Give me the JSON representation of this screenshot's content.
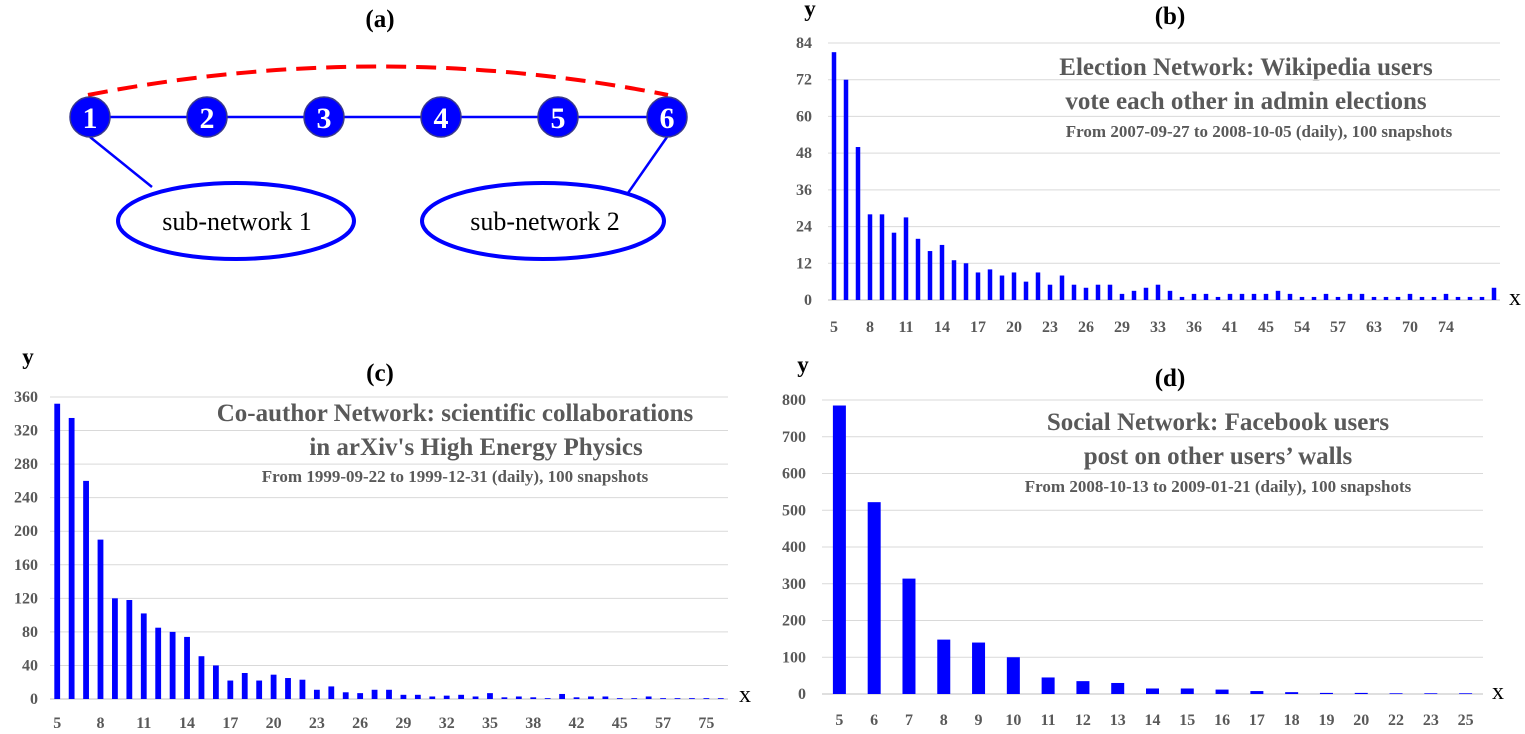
{
  "diagram": {
    "label": "(a)",
    "nodes": [
      "1",
      "2",
      "3",
      "4",
      "5",
      "6"
    ],
    "subnetworks": [
      "sub-network 1",
      "sub-network 2"
    ],
    "colors": {
      "node": "#0000ff",
      "edge": "#0000ff",
      "dashed_edge": "#ff0000"
    }
  },
  "chart_data": [
    {
      "id": "b",
      "type": "bar",
      "label": "(b)",
      "title_line1": "Election Network: Wikipedia users",
      "title_line2": "vote each other in admin elections",
      "subtitle": "From 2007-09-27 to 2008-10-05 (daily), 100 snapshots",
      "xlabel": "x",
      "ylabel": "y",
      "ylim": [
        0,
        84
      ],
      "yticks": [
        "0",
        "12",
        "24",
        "36",
        "48",
        "60",
        "72",
        "84"
      ],
      "xtick_labels": [
        "5",
        "8",
        "11",
        "14",
        "17",
        "20",
        "23",
        "26",
        "29",
        "33",
        "36",
        "41",
        "45",
        "54",
        "57",
        "63",
        "70",
        "74"
      ],
      "xtick_every": 3,
      "values": [
        81,
        72,
        50,
        28,
        28,
        22,
        27,
        20,
        16,
        18,
        13,
        12,
        9,
        10,
        8,
        9,
        6,
        9,
        5,
        8,
        5,
        4,
        5,
        5,
        2,
        3,
        4,
        5,
        3,
        1,
        2,
        2,
        1,
        2,
        2,
        2,
        2,
        3,
        2,
        1,
        1,
        2,
        1,
        2,
        2,
        1,
        1,
        1,
        2,
        1,
        1,
        2,
        1,
        1,
        1,
        4
      ],
      "color": "#0000ff"
    },
    {
      "id": "c",
      "type": "bar",
      "label": "(c)",
      "title_line1": "Co-author Network:  scientific collaborations",
      "title_line2": "in arXiv's High Energy Physics",
      "subtitle": "From 1999-09-22 to 1999-12-31 (daily), 100 snapshots",
      "xlabel": "x",
      "ylabel": "y",
      "ylim": [
        0,
        360
      ],
      "yticks": [
        "0",
        "40",
        "80",
        "120",
        "160",
        "200",
        "240",
        "280",
        "320",
        "360"
      ],
      "xtick_labels": [
        "5",
        "8",
        "11",
        "14",
        "17",
        "20",
        "23",
        "26",
        "29",
        "32",
        "35",
        "38",
        "42",
        "45",
        "57",
        "75"
      ],
      "xtick_every": 3,
      "values": [
        352,
        335,
        260,
        190,
        120,
        118,
        102,
        85,
        80,
        74,
        51,
        40,
        22,
        31,
        22,
        29,
        25,
        23,
        11,
        15,
        8,
        7,
        11,
        11,
        5,
        5,
        3,
        4,
        5,
        3,
        7,
        2,
        3,
        2,
        1,
        6,
        2,
        3,
        3,
        1,
        1,
        3,
        1,
        1,
        1,
        1,
        1
      ],
      "color": "#0000ff"
    },
    {
      "id": "d",
      "type": "bar",
      "label": "(d)",
      "title_line1": "Social Network: Facebook users",
      "title_line2": "post on other users’ walls",
      "subtitle": "From 2008-10-13 to 2009-01-21 (daily), 100 snapshots",
      "xlabel": "x",
      "ylabel": "y",
      "ylim": [
        0,
        800
      ],
      "yticks": [
        "0",
        "100",
        "200",
        "300",
        "400",
        "500",
        "600",
        "700",
        "800"
      ],
      "xtick_labels": [
        "5",
        "6",
        "7",
        "8",
        "9",
        "10",
        "11",
        "12",
        "13",
        "14",
        "15",
        "16",
        "17",
        "18",
        "19",
        "20",
        "22",
        "23",
        "25"
      ],
      "xtick_every": 1,
      "values": [
        785,
        522,
        314,
        148,
        140,
        100,
        45,
        35,
        30,
        15,
        15,
        12,
        8,
        5,
        3,
        3,
        2,
        2,
        2
      ],
      "color": "#0000ff"
    }
  ]
}
